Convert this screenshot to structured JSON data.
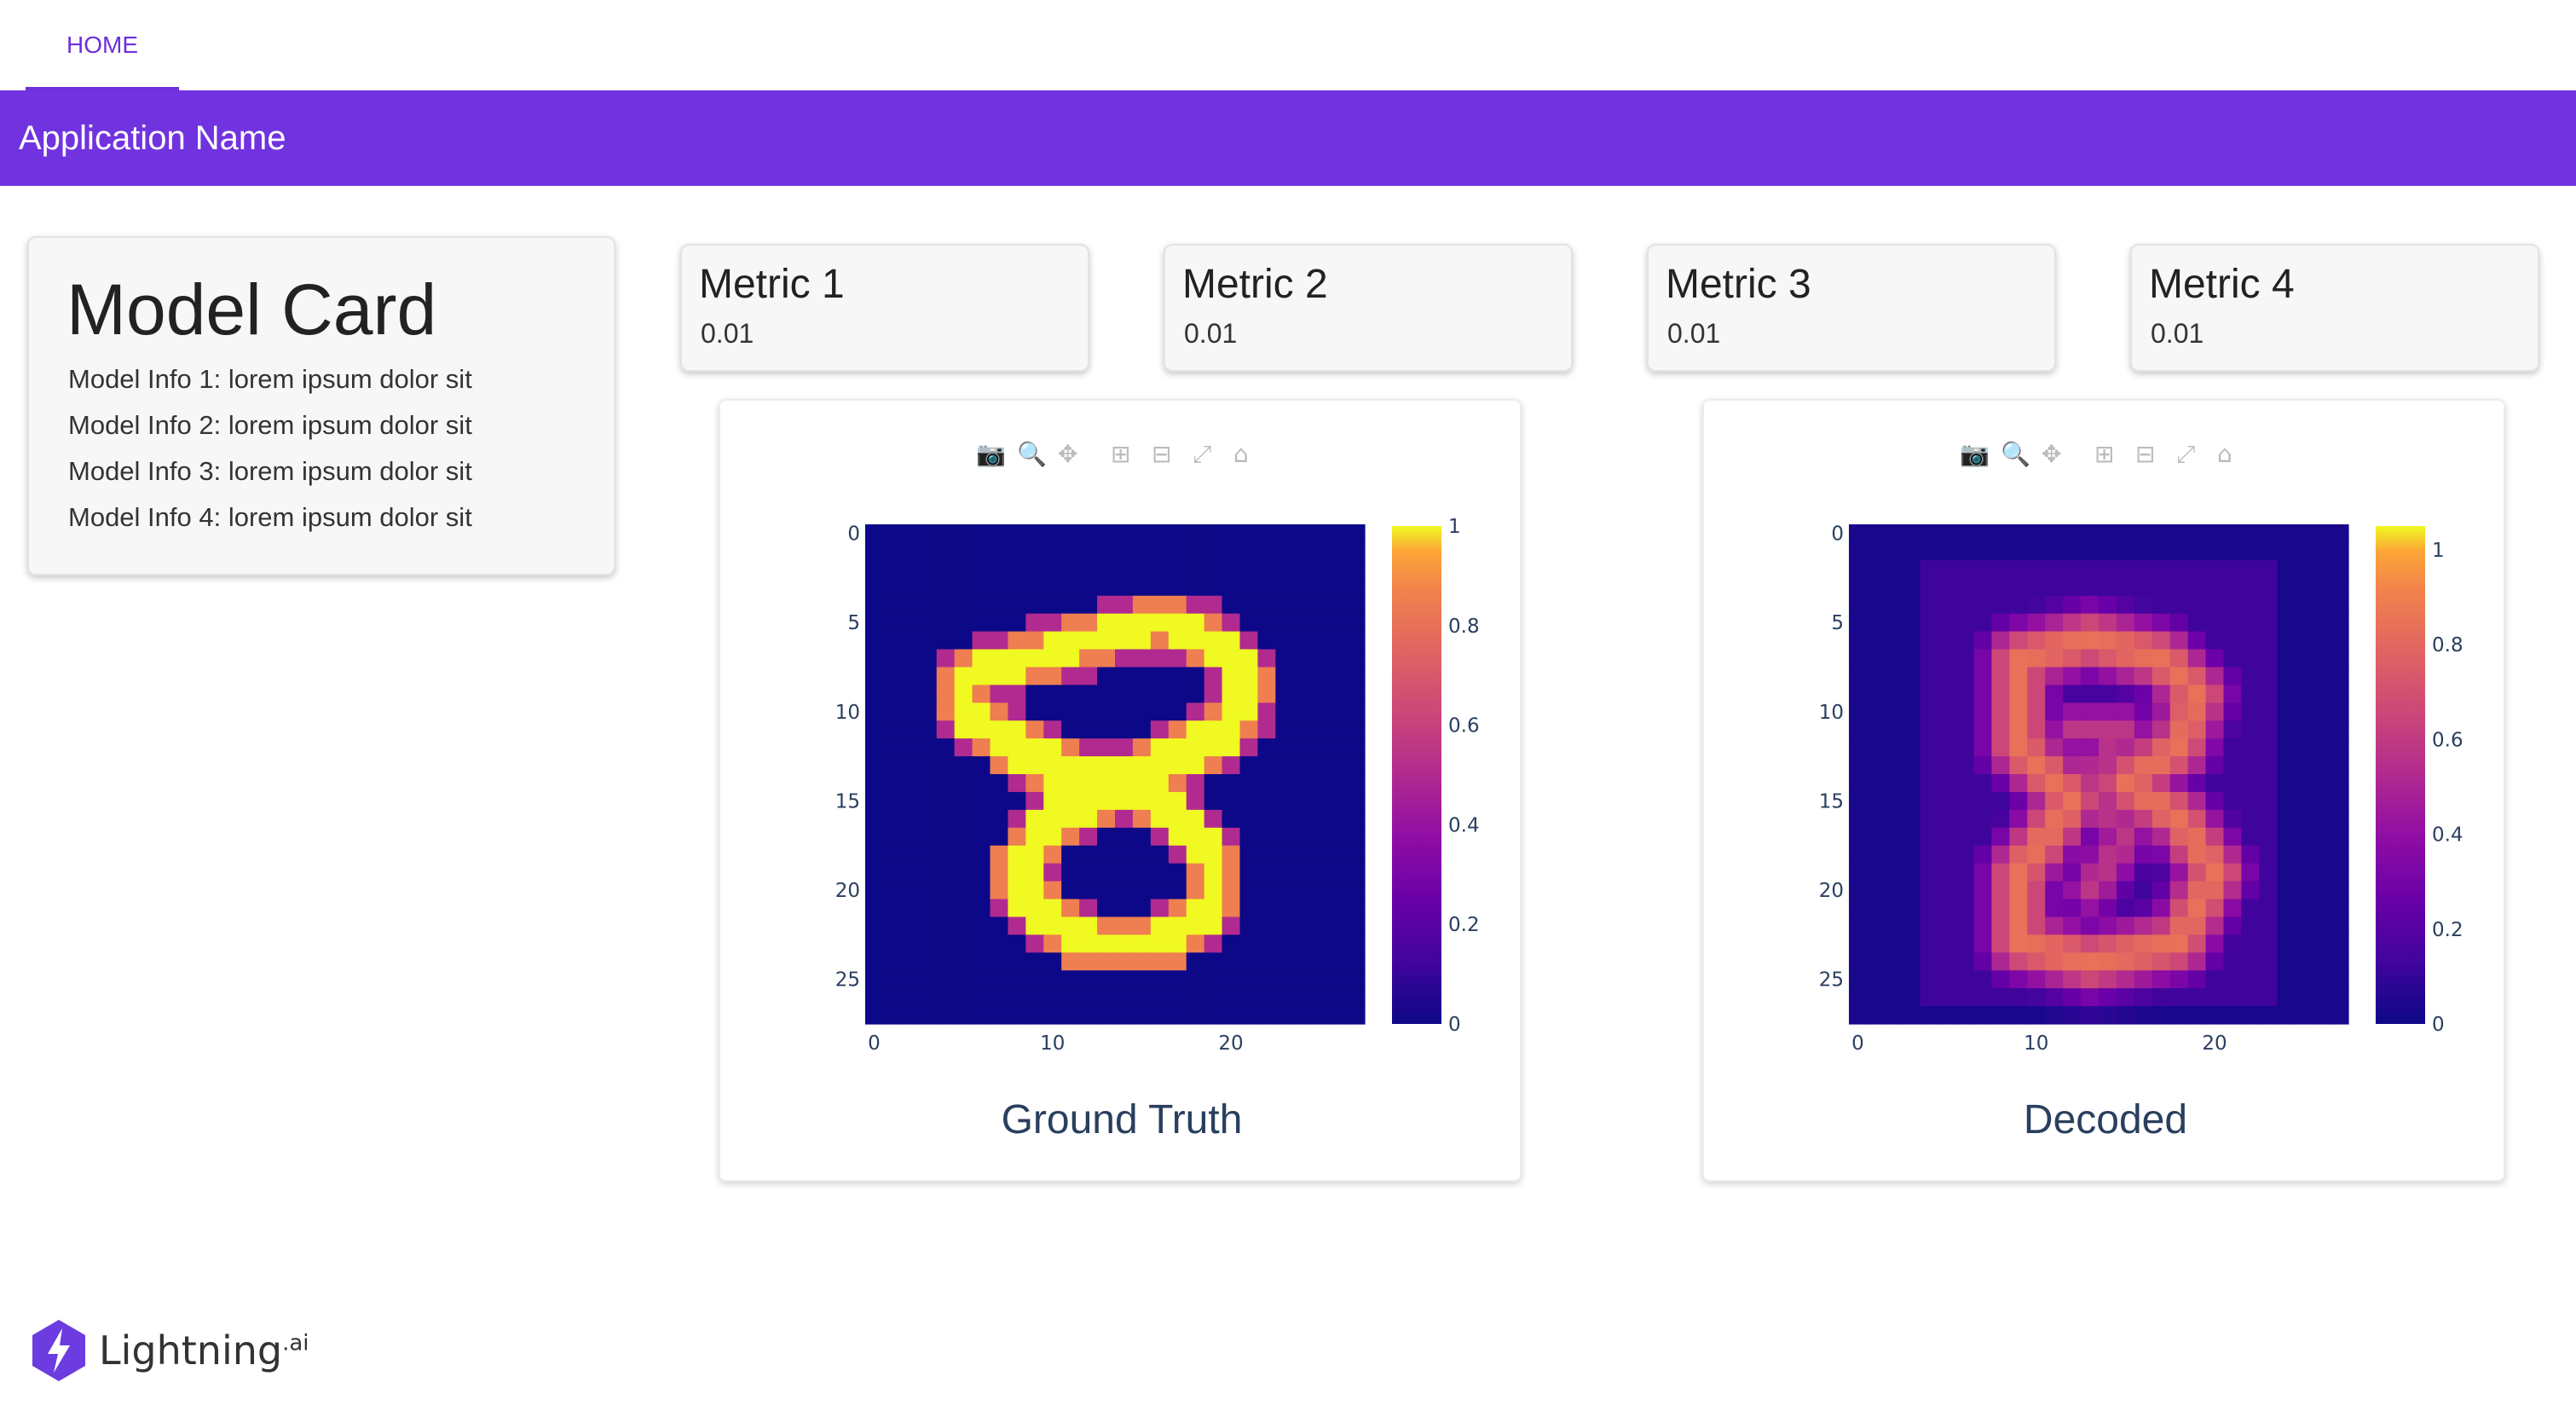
{
  "nav": {
    "home_label": "HOME"
  },
  "app": {
    "title": "Application Name"
  },
  "model_card": {
    "title": "Model Card",
    "info": [
      "Model Info 1: lorem ipsum dolor sit",
      "Model Info 2: lorem ipsum dolor sit",
      "Model Info 3: lorem ipsum dolor sit",
      "Model Info 4: lorem ipsum dolor sit"
    ]
  },
  "metrics": [
    {
      "label": "Metric 1",
      "value": "0.01"
    },
    {
      "label": "Metric 2",
      "value": "0.01"
    },
    {
      "label": "Metric 3",
      "value": "0.01"
    },
    {
      "label": "Metric 4",
      "value": "0.01"
    }
  ],
  "modebar_icons": [
    "camera-icon",
    "zoom-icon",
    "pan-icon",
    "zoom-in-icon",
    "zoom-out-icon",
    "autoscale-icon",
    "reset-axes-icon"
  ],
  "colors": {
    "accent": "#7133df",
    "plot_title": "#2a3f5f"
  },
  "chart_data": [
    {
      "type": "heatmap",
      "title": "Ground Truth",
      "x_ticks": [
        "0",
        "10",
        "20"
      ],
      "y_ticks": [
        "0",
        "5",
        "10",
        "15",
        "20",
        "25"
      ],
      "colorbar_ticks": [
        "1",
        "0.8",
        "0.6",
        "0.4",
        "0.2",
        "0"
      ],
      "colorscale": "plasma",
      "zmin": 0,
      "zmax": 1,
      "grid_size": 28
    },
    {
      "type": "heatmap",
      "title": "Decoded",
      "x_ticks": [
        "0",
        "10",
        "20"
      ],
      "y_ticks": [
        "0",
        "5",
        "10",
        "15",
        "20",
        "25"
      ],
      "colorbar_ticks": [
        "1",
        "0.8",
        "0.6",
        "0.4",
        "0.2",
        "0"
      ],
      "colorscale": "plasma",
      "zmin": 0,
      "zmax": 1.05,
      "grid_size": 28
    }
  ],
  "logo": {
    "text": "Lightning",
    "sup": ".ai"
  }
}
